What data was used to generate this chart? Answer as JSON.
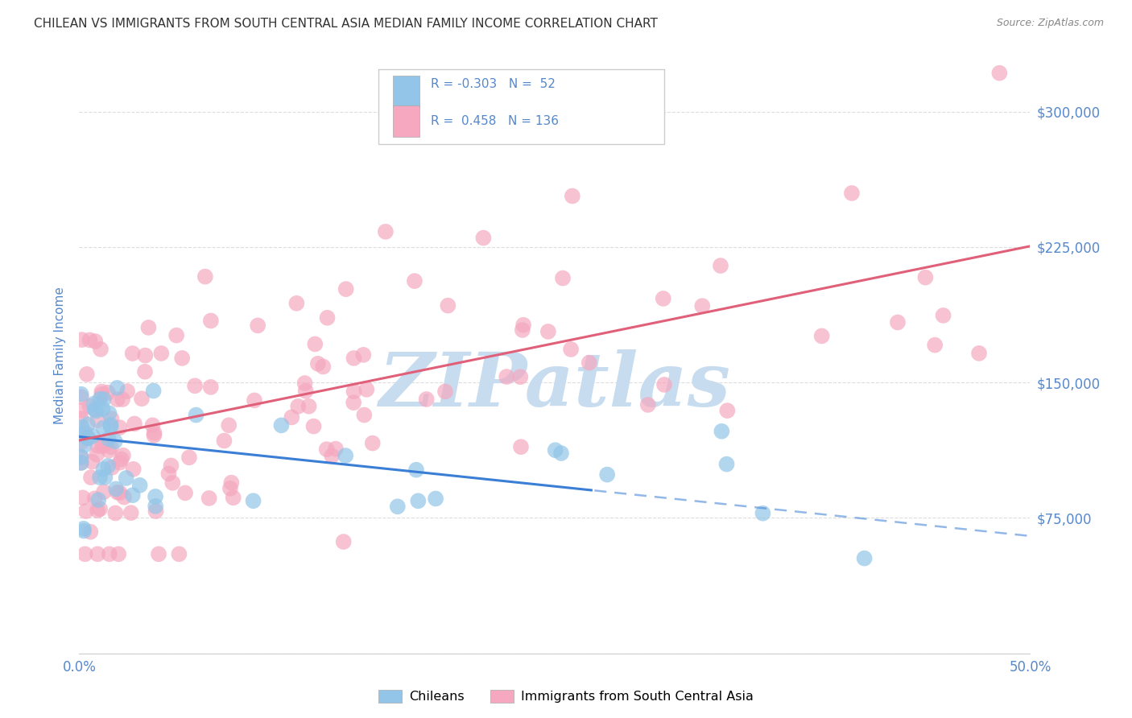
{
  "title": "CHILEAN VS IMMIGRANTS FROM SOUTH CENTRAL ASIA MEDIAN FAMILY INCOME CORRELATION CHART",
  "source": "Source: ZipAtlas.com",
  "ylabel": "Median Family Income",
  "yticks": [
    0,
    75000,
    150000,
    225000,
    300000
  ],
  "ytick_labels": [
    "",
    "$75,000",
    "$150,000",
    "$225,000",
    "$300,000"
  ],
  "xlim": [
    0.0,
    0.5
  ],
  "ylim": [
    0,
    330000
  ],
  "blue_R": "-0.303",
  "blue_N": "52",
  "pink_R": "0.458",
  "pink_N": "136",
  "blue_color": "#92C5E8",
  "pink_color": "#F5A8C0",
  "blue_line_color": "#3A7FD5",
  "pink_line_color": "#E0607A",
  "legend_label_blue": "Chileans",
  "legend_label_pink": "Immigrants from South Central Asia",
  "watermark": "ZIPatlas",
  "watermark_color": "#C8DCF0",
  "background_color": "#FFFFFF",
  "grid_color": "#DDDDDD",
  "title_color": "#333333",
  "source_color": "#888888",
  "axis_label_color": "#5588CC",
  "legend_text_color_blue": "#3366CC",
  "legend_text_color_pink": "#E0607A",
  "blue_intercept": 120000,
  "blue_slope": -110000,
  "pink_intercept": 118000,
  "pink_slope": 215000,
  "blue_line_solid_end": 0.5,
  "blue_line_dashed_end": 0.5
}
